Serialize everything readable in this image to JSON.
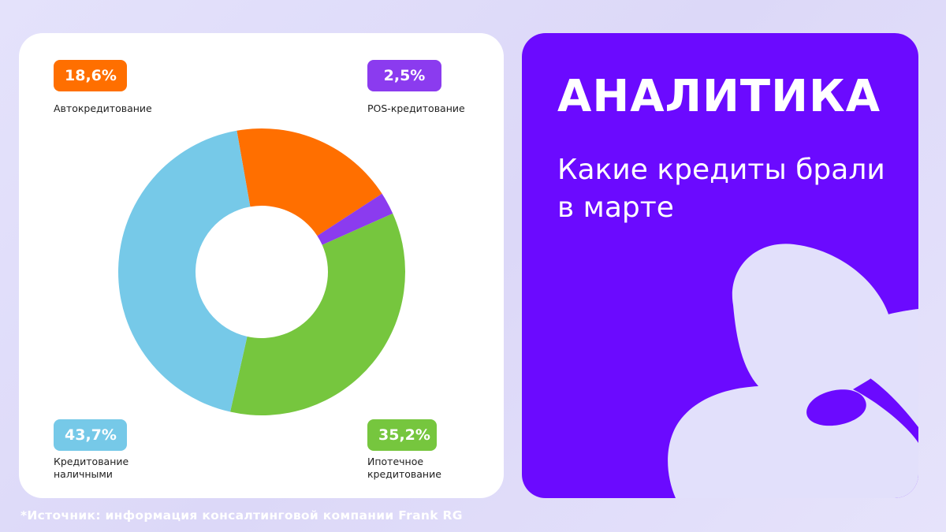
{
  "chart_data": {
    "type": "pie",
    "style": "donut",
    "categories": [
      "Автокредитование",
      "POS-кредитование",
      "Ипотечное\nкредитование",
      "Кредитование\nналичными"
    ],
    "values": [
      18.6,
      2.5,
      35.2,
      43.7
    ],
    "value_labels": [
      "18,6%",
      "2,5%",
      "35,2%",
      "43,7%"
    ],
    "colors": [
      "#ff6f00",
      "#8b3bef",
      "#76c63e",
      "#76c9e8"
    ]
  },
  "panel": {
    "title": "АНАЛИТИКА",
    "subtitle": "Какие кредиты брали в марте",
    "background": "#6b0aff"
  },
  "source_note": "*Источник: информация консалтинговой компании Frank RG"
}
